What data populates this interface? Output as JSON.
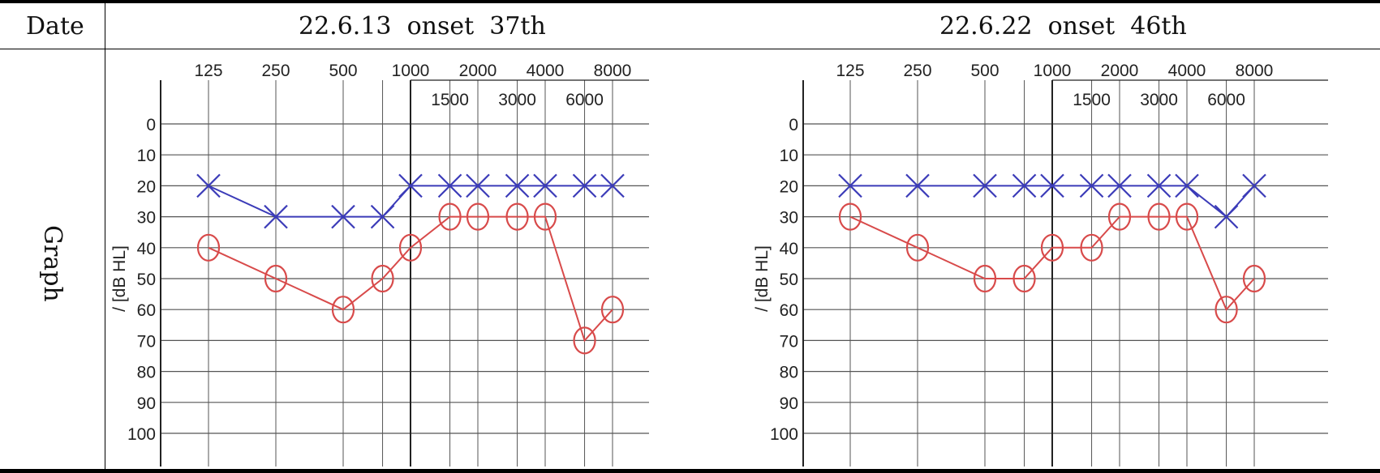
{
  "table": {
    "row1_label": "Date",
    "row2_label": "Graph",
    "date_left": "22.6.13  onset  37th",
    "date_right": "22.6.22  onset  46th"
  },
  "audiogram_axis": {
    "ylabel": "/ [dB HL]",
    "top_freqs": [
      "125",
      "250",
      "500",
      "1000",
      "2000",
      "4000",
      "8000"
    ],
    "mid_freqs": [
      "1500",
      "3000",
      "6000"
    ],
    "db_ticks": [
      "0",
      "10",
      "20",
      "30",
      "40",
      "50",
      "60",
      "70",
      "80",
      "90",
      "100"
    ]
  },
  "colors": {
    "left_ear": "#3b3bb8",
    "right_ear": "#d84a4a",
    "grid": "#555555"
  },
  "chart_data": [
    {
      "type": "line",
      "title": "",
      "xlabel": "",
      "ylabel": "/ [dB HL]",
      "x": [
        125,
        250,
        500,
        750,
        1000,
        1500,
        2000,
        3000,
        4000,
        6000,
        8000
      ],
      "ylim": [
        100,
        0
      ],
      "xscale": "log",
      "grid": true,
      "series": [
        {
          "marker": "x",
          "color": "#3b3bb8",
          "x": [
            125,
            250,
            500,
            750,
            1000,
            1500,
            2000,
            3000,
            4000,
            6000,
            8000
          ],
          "values": [
            20,
            30,
            30,
            30,
            20,
            20,
            20,
            20,
            20,
            20,
            20
          ]
        },
        {
          "marker": "o",
          "color": "#d84a4a",
          "x": [
            125,
            250,
            500,
            750,
            1000,
            1500,
            2000,
            3000,
            4000,
            6000,
            8000
          ],
          "values": [
            40,
            50,
            60,
            50,
            40,
            30,
            30,
            30,
            30,
            70,
            60
          ]
        }
      ]
    },
    {
      "type": "line",
      "title": "",
      "xlabel": "",
      "ylabel": "/ [dB HL]",
      "x": [
        125,
        250,
        500,
        750,
        1000,
        1500,
        2000,
        3000,
        4000,
        6000,
        8000
      ],
      "ylim": [
        100,
        0
      ],
      "xscale": "log",
      "grid": true,
      "series": [
        {
          "marker": "x",
          "color": "#3b3bb8",
          "x": [
            125,
            250,
            500,
            750,
            1000,
            1500,
            2000,
            3000,
            4000,
            6000,
            8000
          ],
          "values": [
            20,
            20,
            20,
            20,
            20,
            20,
            20,
            20,
            20,
            30,
            20
          ]
        },
        {
          "marker": "o",
          "color": "#d84a4a",
          "x": [
            125,
            250,
            500,
            750,
            1000,
            1500,
            2000,
            3000,
            4000,
            6000,
            8000
          ],
          "values": [
            30,
            40,
            50,
            50,
            40,
            40,
            30,
            30,
            30,
            60,
            50
          ]
        }
      ]
    }
  ]
}
